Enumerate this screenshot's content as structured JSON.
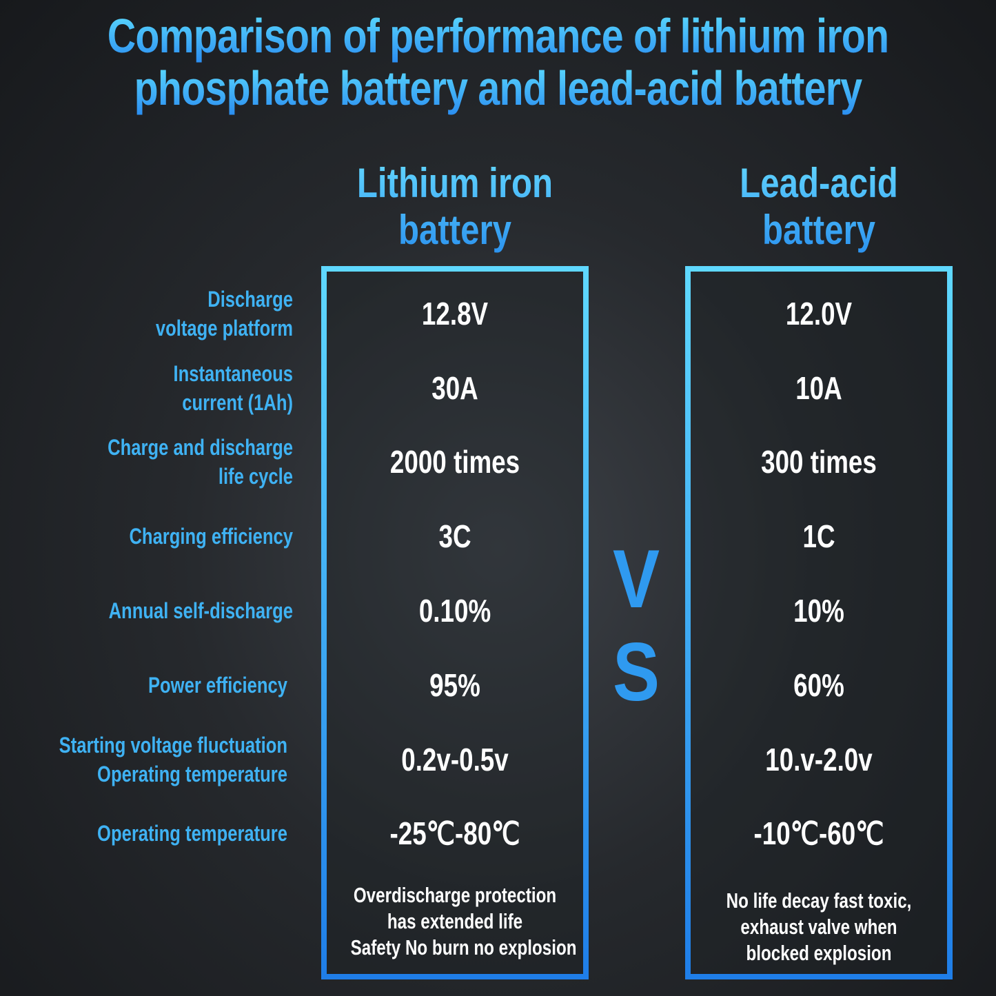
{
  "title": {
    "line1": "Comparison of performance of lithium iron",
    "line2": "phosphate battery and lead-acid battery"
  },
  "columns": [
    {
      "header_line1": "Lithium iron",
      "header_line2": "battery"
    },
    {
      "header_line1": "Lead-acid",
      "header_line2": "battery"
    }
  ],
  "vs": {
    "v": "V",
    "s": "S"
  },
  "rows": [
    {
      "label1": "Discharge",
      "label2": "voltage platform",
      "lithium": "12.8V",
      "lead": "12.0V"
    },
    {
      "label1": "Instantaneous",
      "label2": "current (1Ah)",
      "lithium": "30A",
      "lead": "10A"
    },
    {
      "label1": "Charge and discharge",
      "label2": "life cycle",
      "lithium": "2000 times",
      "lead": "300 times"
    },
    {
      "label1": "Charging efficiency",
      "label2": "",
      "lithium": "3C",
      "lead": "1C"
    },
    {
      "label1": "Annual self-discharge",
      "label2": "",
      "lithium": "0.10%",
      "lead": "10%"
    },
    {
      "label1": "Power efficiency",
      "label2": "",
      "lithium": "95%",
      "lead": "60%"
    },
    {
      "label1": "Starting voltage fluctuation",
      "label2": "Operating temperature",
      "lithium": "0.2v-0.5v",
      "lead": "10.v-2.0v"
    },
    {
      "label1": "Operating temperature",
      "label2": "",
      "lithium": "-25℃-80℃",
      "lead": "-10℃-60℃"
    }
  ],
  "notes": {
    "lithium": [
      "Overdischarge protection",
      "has extended life",
      "Safety No burn no explosion"
    ],
    "lead": [
      "No life decay fast toxic,",
      "exhaust valve when",
      "blocked explosion"
    ]
  },
  "colors": {
    "accent": "#3fb2f3",
    "border": "#2c96f0",
    "value_text": "#ffffff"
  }
}
